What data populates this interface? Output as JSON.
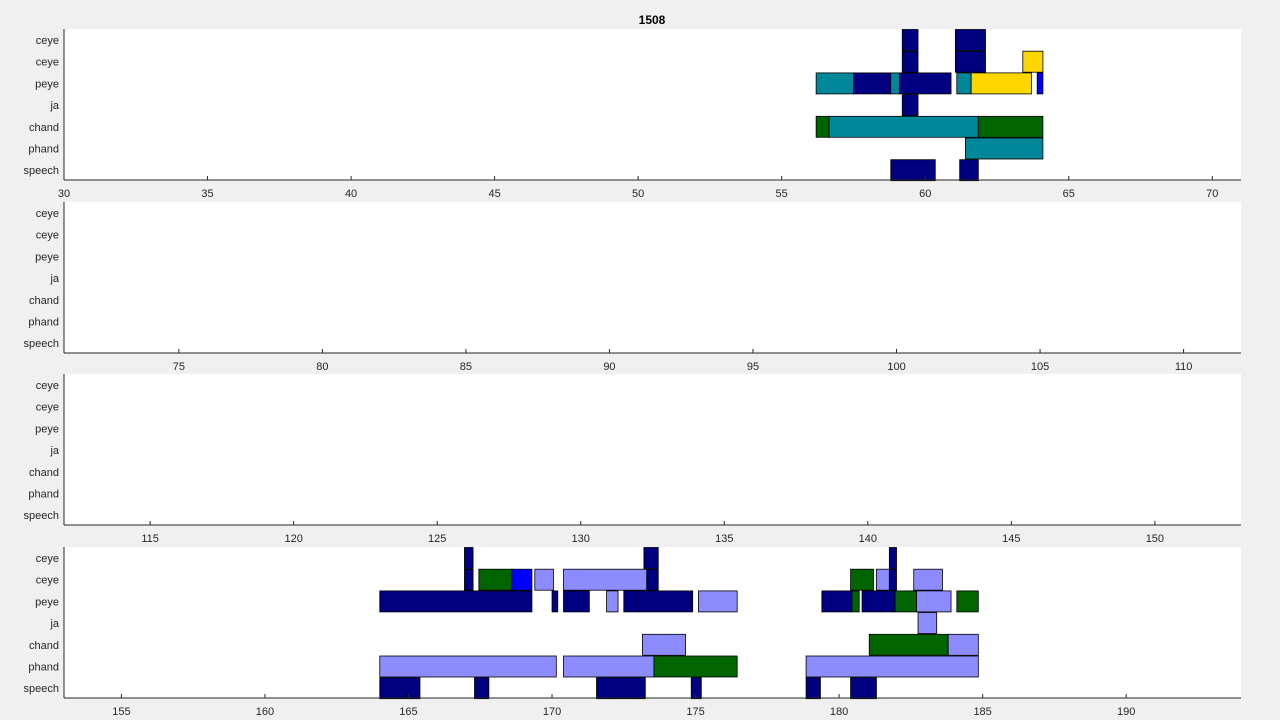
{
  "figure": {
    "background": "#f0f0f0"
  },
  "chart_data": {
    "type": "bar",
    "title": "1508",
    "orientation": "horizontal-timeline",
    "row_labels": [
      "ceye",
      "ceye",
      "peye",
      "ja",
      "chand",
      "phand",
      "speech"
    ],
    "colors": {
      "dark_blue": "#000080",
      "teal": "#00879a",
      "green": "#006400",
      "yellow": "#ffd700",
      "blue": "#0000ff",
      "light_blue": "#8c8cff"
    },
    "panels": [
      {
        "xlim": [
          30,
          71
        ],
        "xticks": [
          30,
          35,
          40,
          45,
          50,
          55,
          60,
          65,
          70
        ],
        "segments": [
          {
            "row": 0,
            "start": 59.2,
            "end": 59.75,
            "color": "#000080"
          },
          {
            "row": 0,
            "start": 61.05,
            "end": 62.1,
            "color": "#000080"
          },
          {
            "row": 1,
            "start": 59.2,
            "end": 59.75,
            "color": "#000080"
          },
          {
            "row": 1,
            "start": 61.05,
            "end": 62.1,
            "color": "#000080"
          },
          {
            "row": 1,
            "start": 63.4,
            "end": 64.1,
            "color": "#ffd700"
          },
          {
            "row": 2,
            "start": 56.2,
            "end": 57.5,
            "color": "#00879a"
          },
          {
            "row": 2,
            "start": 57.5,
            "end": 58.8,
            "color": "#000080"
          },
          {
            "row": 2,
            "start": 58.8,
            "end": 59.1,
            "color": "#00879a"
          },
          {
            "row": 2,
            "start": 59.1,
            "end": 60.9,
            "color": "#000080"
          },
          {
            "row": 2,
            "start": 61.1,
            "end": 61.6,
            "color": "#00879a"
          },
          {
            "row": 2,
            "start": 61.6,
            "end": 63.7,
            "color": "#ffd700"
          },
          {
            "row": 2,
            "start": 63.9,
            "end": 64.1,
            "color": "#0000ff"
          },
          {
            "row": 3,
            "start": 59.2,
            "end": 59.75,
            "color": "#000080"
          },
          {
            "row": 4,
            "start": 56.2,
            "end": 56.65,
            "color": "#006400"
          },
          {
            "row": 4,
            "start": 56.65,
            "end": 61.85,
            "color": "#00879a"
          },
          {
            "row": 4,
            "start": 61.85,
            "end": 64.1,
            "color": "#006400"
          },
          {
            "row": 5,
            "start": 61.4,
            "end": 64.1,
            "color": "#00879a"
          },
          {
            "row": 6,
            "start": 58.8,
            "end": 60.35,
            "color": "#000080"
          },
          {
            "row": 6,
            "start": 61.2,
            "end": 61.85,
            "color": "#000080"
          }
        ]
      },
      {
        "xlim": [
          71,
          112
        ],
        "xticks": [
          75,
          80,
          85,
          90,
          95,
          100,
          105,
          110
        ],
        "segments": []
      },
      {
        "xlim": [
          112,
          153
        ],
        "xticks": [
          115,
          120,
          125,
          130,
          135,
          140,
          145,
          150
        ],
        "segments": []
      },
      {
        "xlim": [
          153,
          194
        ],
        "xticks": [
          155,
          160,
          165,
          170,
          175,
          180,
          185,
          190
        ],
        "segments": [
          {
            "row": 0,
            "start": 166.95,
            "end": 167.25,
            "color": "#000080"
          },
          {
            "row": 0,
            "start": 173.2,
            "end": 173.7,
            "color": "#000080"
          },
          {
            "row": 0,
            "start": 181.75,
            "end": 182.0,
            "color": "#000080"
          },
          {
            "row": 1,
            "start": 166.95,
            "end": 167.25,
            "color": "#000080"
          },
          {
            "row": 1,
            "start": 167.45,
            "end": 168.6,
            "color": "#006400"
          },
          {
            "row": 1,
            "start": 168.6,
            "end": 169.3,
            "color": "#0000ff"
          },
          {
            "row": 1,
            "start": 169.4,
            "end": 170.05,
            "color": "#8c8cff"
          },
          {
            "row": 1,
            "start": 170.4,
            "end": 173.3,
            "color": "#8c8cff"
          },
          {
            "row": 1,
            "start": 173.3,
            "end": 173.7,
            "color": "#000080"
          },
          {
            "row": 1,
            "start": 180.4,
            "end": 181.2,
            "color": "#006400"
          },
          {
            "row": 1,
            "start": 181.3,
            "end": 181.75,
            "color": "#8c8cff"
          },
          {
            "row": 1,
            "start": 181.75,
            "end": 182.0,
            "color": "#000080"
          },
          {
            "row": 1,
            "start": 182.6,
            "end": 183.6,
            "color": "#8c8cff"
          },
          {
            "row": 2,
            "start": 164.0,
            "end": 169.3,
            "color": "#000080"
          },
          {
            "row": 2,
            "start": 170.0,
            "end": 170.2,
            "color": "#000080"
          },
          {
            "row": 2,
            "start": 170.4,
            "end": 171.3,
            "color": "#000080"
          },
          {
            "row": 2,
            "start": 171.9,
            "end": 172.3,
            "color": "#8c8cff"
          },
          {
            "row": 2,
            "start": 172.5,
            "end": 174.9,
            "color": "#000080"
          },
          {
            "row": 2,
            "start": 175.1,
            "end": 176.45,
            "color": "#8c8cff"
          },
          {
            "row": 2,
            "start": 179.4,
            "end": 180.45,
            "color": "#000080"
          },
          {
            "row": 2,
            "start": 180.45,
            "end": 180.7,
            "color": "#006400"
          },
          {
            "row": 2,
            "start": 180.8,
            "end": 181.95,
            "color": "#000080"
          },
          {
            "row": 2,
            "start": 181.95,
            "end": 182.7,
            "color": "#006400"
          },
          {
            "row": 2,
            "start": 182.7,
            "end": 183.9,
            "color": "#8c8cff"
          },
          {
            "row": 2,
            "start": 184.1,
            "end": 184.85,
            "color": "#006400"
          },
          {
            "row": 3,
            "start": 182.75,
            "end": 183.4,
            "color": "#8c8cff"
          },
          {
            "row": 4,
            "start": 173.15,
            "end": 174.65,
            "color": "#8c8cff"
          },
          {
            "row": 4,
            "start": 181.05,
            "end": 183.8,
            "color": "#006400"
          },
          {
            "row": 4,
            "start": 183.8,
            "end": 184.85,
            "color": "#8c8cff"
          },
          {
            "row": 5,
            "start": 164.0,
            "end": 170.15,
            "color": "#8c8cff"
          },
          {
            "row": 5,
            "start": 170.4,
            "end": 173.55,
            "color": "#8c8cff"
          },
          {
            "row": 5,
            "start": 173.55,
            "end": 176.45,
            "color": "#006400"
          },
          {
            "row": 5,
            "start": 178.85,
            "end": 184.85,
            "color": "#8c8cff"
          },
          {
            "row": 6,
            "start": 164.0,
            "end": 165.4,
            "color": "#000080"
          },
          {
            "row": 6,
            "start": 167.3,
            "end": 167.8,
            "color": "#000080"
          },
          {
            "row": 6,
            "start": 171.55,
            "end": 173.25,
            "color": "#000080"
          },
          {
            "row": 6,
            "start": 174.85,
            "end": 175.2,
            "color": "#000080"
          },
          {
            "row": 6,
            "start": 178.85,
            "end": 179.35,
            "color": "#000080"
          },
          {
            "row": 6,
            "start": 180.4,
            "end": 181.3,
            "color": "#000080"
          }
        ]
      }
    ]
  }
}
